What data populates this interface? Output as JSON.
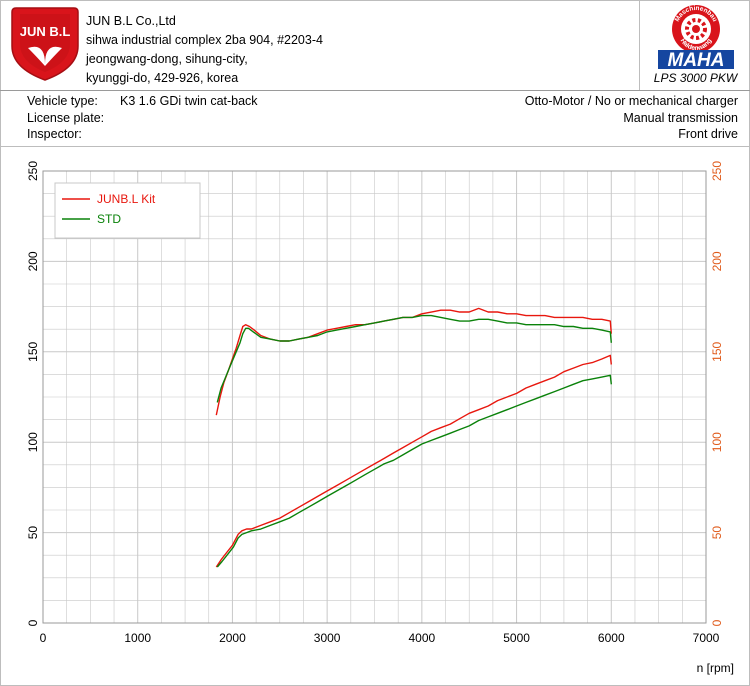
{
  "header": {
    "logo_text": "JUN B.L",
    "company_lines": [
      "JUN B.L Co.,Ltd",
      "sihwa industrial complex 2ba 904, #2203-4",
      "jeongwang-dong, sihung-city,",
      "kyunggi-do, 429-926, korea"
    ],
    "maha": {
      "ring_top": "Maschinenbau",
      "ring_bottom": "Haldenwang",
      "wordmark": "MAHA",
      "model": "LPS 3000 PKW"
    }
  },
  "vehicle_info": {
    "vehicle_type_label": "Vehicle type:",
    "vehicle_type_value": "K3 1.6 GDi twin cat-back",
    "license_plate_label": "License plate:",
    "inspector_label": "Inspector:",
    "right_lines": [
      "Otto-Motor / No or mechanical charger",
      "Manual transmission",
      "Front drive"
    ]
  },
  "colors": {
    "kit": "#e8170e",
    "std": "#0a820a",
    "right_axis": "#e05a1a",
    "grid": "#c8c8c8",
    "logo_red": "#d9141b",
    "maha_blue": "#1546a0"
  },
  "chart_data": {
    "type": "line",
    "xlabel": "n [rpm]",
    "ylabel": "",
    "xlim": [
      0,
      7000
    ],
    "ylim": [
      0,
      250
    ],
    "y2lim": [
      0,
      250
    ],
    "x_ticks": [
      "0",
      "1000",
      "2000",
      "3000",
      "4000",
      "5000",
      "6000",
      "7000"
    ],
    "y_ticks": [
      "0",
      "50",
      "100",
      "150",
      "200",
      "250"
    ],
    "y2_ticks": [
      "0",
      "50",
      "100",
      "150",
      "200",
      "250"
    ],
    "grid": true,
    "legend_position": "top-left",
    "series": [
      {
        "name": "JUNB.L Kit",
        "color_key": "kit",
        "kind": "torque",
        "x": [
          1830,
          1870,
          1910,
          1960,
          2000,
          2040,
          2080,
          2110,
          2140,
          2180,
          2230,
          2300,
          2400,
          2500,
          2600,
          2700,
          2800,
          2900,
          3000,
          3100,
          3200,
          3300,
          3400,
          3500,
          3600,
          3700,
          3800,
          3900,
          4000,
          4100,
          4200,
          4300,
          4400,
          4500,
          4600,
          4700,
          4800,
          4900,
          5000,
          5100,
          5200,
          5300,
          5400,
          5500,
          5600,
          5700,
          5800,
          5900,
          5990,
          6000
        ],
        "y": [
          115,
          125,
          133,
          140,
          146,
          152,
          159,
          164,
          165,
          164,
          162,
          159,
          157,
          156,
          156,
          157,
          158,
          160,
          162,
          163,
          164,
          165,
          165,
          166,
          167,
          168,
          169,
          169,
          171,
          172,
          173,
          173,
          172,
          172,
          174,
          172,
          172,
          171,
          171,
          170,
          170,
          170,
          169,
          169,
          169,
          169,
          168,
          168,
          167,
          160
        ]
      },
      {
        "name": "STD",
        "color_key": "std",
        "kind": "torque",
        "x": [
          1840,
          1880,
          1920,
          1960,
          2000,
          2040,
          2080,
          2110,
          2140,
          2170,
          2220,
          2300,
          2400,
          2500,
          2600,
          2700,
          2800,
          2900,
          3000,
          3100,
          3200,
          3300,
          3400,
          3500,
          3600,
          3700,
          3800,
          3900,
          4000,
          4100,
          4200,
          4300,
          4400,
          4500,
          4600,
          4700,
          4800,
          4900,
          5000,
          5100,
          5200,
          5300,
          5400,
          5500,
          5600,
          5700,
          5800,
          5900,
          5990,
          6000
        ],
        "y": [
          122,
          130,
          135,
          140,
          145,
          150,
          155,
          160,
          163,
          163,
          161,
          158,
          157,
          156,
          156,
          157,
          158,
          159,
          161,
          162,
          163,
          164,
          165,
          166,
          167,
          168,
          169,
          169,
          170,
          170,
          169,
          168,
          167,
          167,
          168,
          168,
          167,
          166,
          166,
          165,
          165,
          165,
          165,
          164,
          164,
          163,
          163,
          162,
          161,
          155
        ]
      },
      {
        "name": "",
        "color_key": "kit",
        "kind": "power",
        "x": [
          1830,
          1880,
          1940,
          2000,
          2060,
          2100,
          2150,
          2200,
          2300,
          2400,
          2500,
          2600,
          2700,
          2800,
          2900,
          3000,
          3100,
          3200,
          3300,
          3400,
          3500,
          3600,
          3700,
          3800,
          3900,
          4000,
          4100,
          4200,
          4300,
          4400,
          4500,
          4600,
          4700,
          4800,
          4900,
          5000,
          5100,
          5200,
          5300,
          5400,
          5500,
          5600,
          5700,
          5800,
          5900,
          5990,
          6000
        ],
        "y": [
          31,
          35,
          39,
          43,
          49,
          51,
          52,
          52,
          54,
          56,
          58,
          61,
          64,
          67,
          70,
          73,
          76,
          79,
          82,
          85,
          88,
          91,
          94,
          97,
          100,
          103,
          106,
          108,
          110,
          113,
          116,
          118,
          120,
          123,
          125,
          127,
          130,
          132,
          134,
          136,
          139,
          141,
          143,
          144,
          146,
          148,
          143
        ]
      },
      {
        "name": "",
        "color_key": "std",
        "kind": "power",
        "x": [
          1840,
          1890,
          1950,
          2010,
          2060,
          2100,
          2150,
          2200,
          2300,
          2400,
          2500,
          2600,
          2700,
          2800,
          2900,
          3000,
          3100,
          3200,
          3300,
          3400,
          3500,
          3600,
          3700,
          3800,
          3900,
          4000,
          4100,
          4200,
          4300,
          4400,
          4500,
          4600,
          4700,
          4800,
          4900,
          5000,
          5100,
          5200,
          5300,
          5400,
          5500,
          5600,
          5700,
          5800,
          5900,
          5990,
          6000
        ],
        "y": [
          31,
          34,
          38,
          42,
          47,
          49,
          50,
          51,
          52,
          54,
          56,
          58,
          61,
          64,
          67,
          70,
          73,
          76,
          79,
          82,
          85,
          88,
          90,
          93,
          96,
          99,
          101,
          103,
          105,
          107,
          109,
          112,
          114,
          116,
          118,
          120,
          122,
          124,
          126,
          128,
          130,
          132,
          134,
          135,
          136,
          137,
          132
        ]
      }
    ]
  }
}
